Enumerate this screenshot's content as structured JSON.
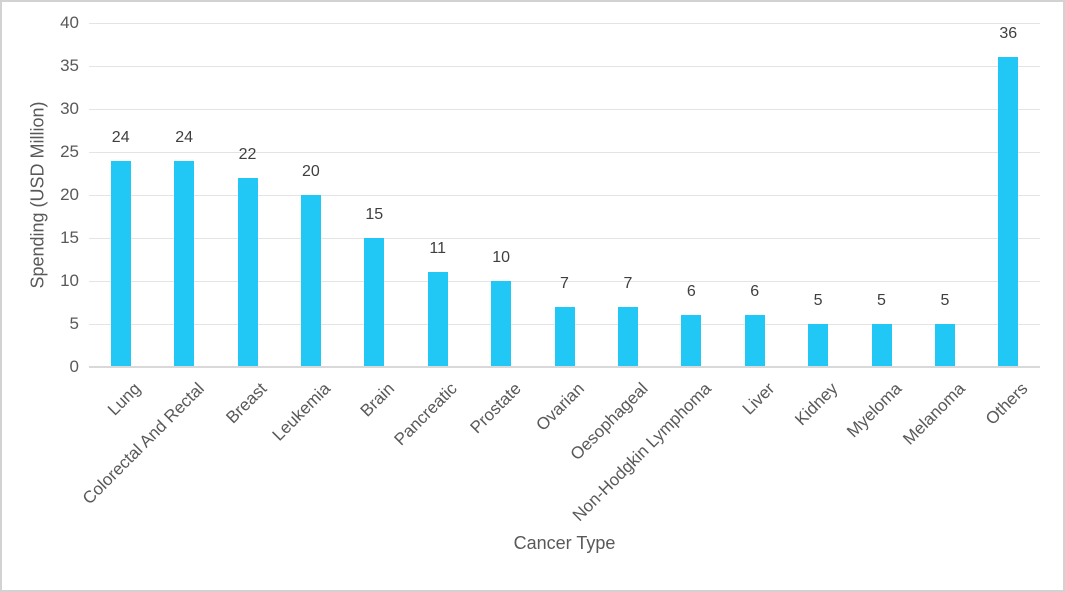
{
  "chart_data": {
    "type": "bar",
    "title": "",
    "xlabel": "Cancer Type",
    "ylabel": "Spending (USD Million)",
    "categories": [
      "Lung",
      "Colorectal And Rectal",
      "Breast",
      "Leukemia",
      "Brain",
      "Pancreatic",
      "Prostate",
      "Ovarian",
      "Oesophageal",
      "Non-Hodgkin Lymphoma",
      "Liver",
      "Kidney",
      "Myeloma",
      "Melanoma",
      "Others"
    ],
    "values": [
      24,
      24,
      22,
      20,
      15,
      11,
      10,
      7,
      7,
      6,
      6,
      5,
      5,
      5,
      36
    ],
    "ylim": [
      0,
      40
    ],
    "ytick_step": 5,
    "ytick_labels": [
      "0",
      "5",
      "10",
      "15",
      "20",
      "25",
      "30",
      "35",
      "40"
    ],
    "grid": true,
    "legend_position": "none",
    "data_labels_visible": true,
    "colors": {
      "bar": "#21c7f5",
      "gridline": "#e4e4e4",
      "axis_line": "#d9d9d9",
      "axis_text": "#595959",
      "data_label_text": "#3f3f3f",
      "frame_border": "#d2d2d2",
      "background": "#ffffff"
    }
  }
}
